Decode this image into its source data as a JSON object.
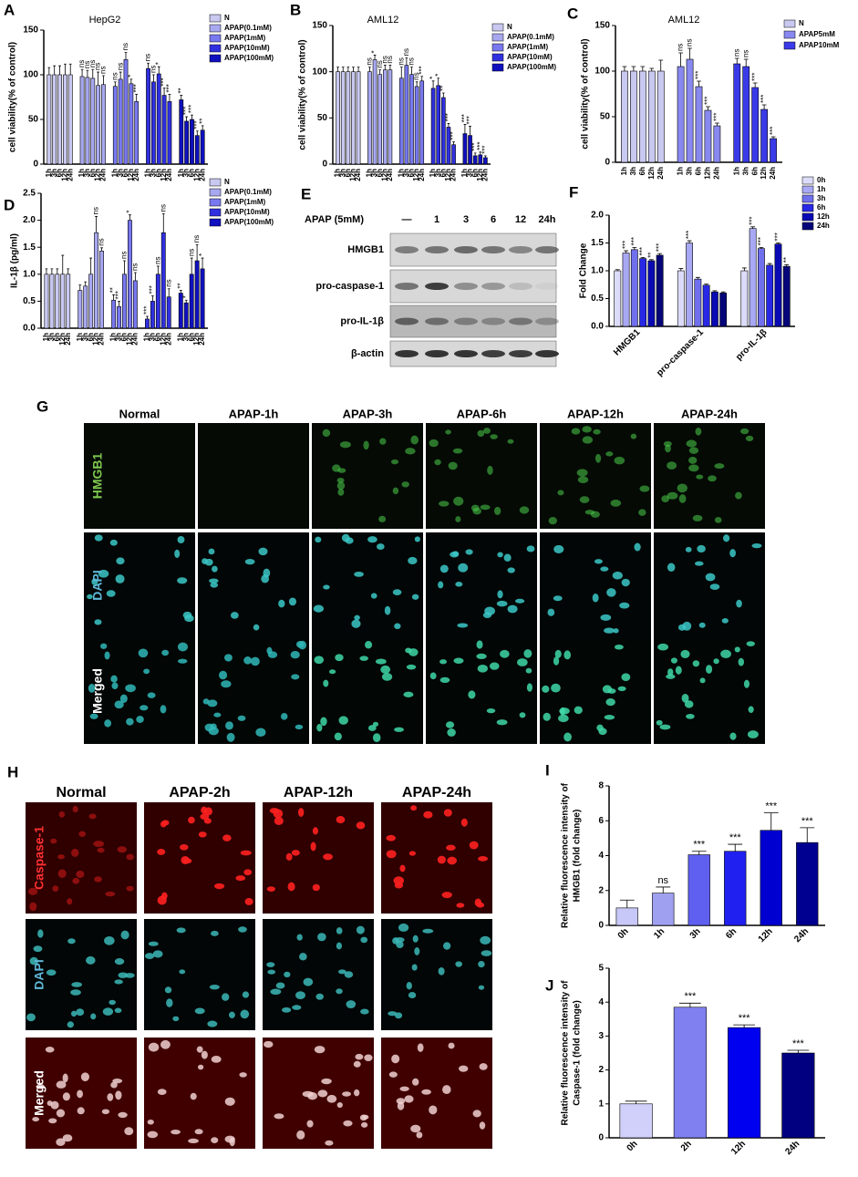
{
  "chart_data": [
    {
      "type": "bar",
      "panel": "A",
      "title": "HepG2",
      "ylabel": "cell viability(% of control)",
      "categories": [
        "1h",
        "3h",
        "6h",
        "12h",
        "24h"
      ],
      "series": [
        {
          "name": "N",
          "color": "#c8c8f0",
          "values": [
            100,
            100,
            100,
            100,
            100
          ],
          "errors": [
            8,
            10,
            10,
            12,
            12
          ],
          "annotations": [
            null,
            null,
            null,
            null,
            null
          ]
        },
        {
          "name": "APAP(0.1mM)",
          "color": "#a8a8f0",
          "values": [
            98,
            97,
            96,
            88,
            89
          ],
          "errors": [
            8,
            8,
            10,
            15,
            10
          ],
          "annotations": [
            "ns",
            "ns",
            "ns",
            "ns",
            "ns"
          ]
        },
        {
          "name": "APAP(1mM)",
          "color": "#7878f0",
          "values": [
            87,
            95,
            117,
            90,
            70
          ],
          "errors": [
            5,
            8,
            8,
            5,
            8
          ],
          "annotations": [
            "ns",
            "ns",
            "ns",
            "*",
            "***"
          ]
        },
        {
          "name": "APAP(10mM)",
          "color": "#3030e0",
          "values": [
            107,
            92,
            101,
            77,
            70
          ],
          "errors": [
            6,
            8,
            8,
            8,
            8
          ],
          "annotations": [
            "ns",
            "ns",
            "*",
            "***",
            "***"
          ]
        },
        {
          "name": "APAP(100mM)",
          "color": "#1010c0",
          "values": [
            72,
            48,
            50,
            32,
            38
          ],
          "errors": [
            5,
            5,
            5,
            5,
            5
          ],
          "annotations": [
            "**",
            "***",
            "***",
            "***",
            "**"
          ]
        }
      ],
      "ylim": [
        0,
        150
      ],
      "yticks": [
        0,
        50,
        100,
        150
      ],
      "legend": "upper right"
    },
    {
      "type": "bar",
      "panel": "B",
      "title": "AML12",
      "ylabel": "cell viability(% of control)",
      "categories": [
        "1h",
        "3h",
        "6h",
        "12h",
        "24h"
      ],
      "series": [
        {
          "name": "N",
          "color": "#c8c8f0",
          "values": [
            100,
            100,
            100,
            100,
            100
          ],
          "errors": [
            5,
            5,
            5,
            5,
            5
          ],
          "annotations": [
            null,
            null,
            null,
            null,
            null
          ]
        },
        {
          "name": "APAP(0.1mM)",
          "color": "#a8a8f0",
          "values": [
            100,
            113,
            97,
            102,
            102
          ],
          "errors": [
            5,
            5,
            5,
            5,
            5
          ],
          "annotations": [
            "ns",
            "*",
            "ns",
            "ns",
            "ns"
          ]
        },
        {
          "name": "APAP(1mM)",
          "color": "#7878f0",
          "values": [
            93,
            107,
            97,
            84,
            90
          ],
          "errors": [
            12,
            8,
            8,
            5,
            5
          ],
          "annotations": [
            "ns",
            "ns",
            "ns",
            "ns",
            "***"
          ]
        },
        {
          "name": "APAP(10mM)",
          "color": "#3030e0",
          "values": [
            82,
            85,
            72,
            40,
            21
          ],
          "errors": [
            8,
            8,
            5,
            4,
            3
          ],
          "annotations": [
            "*",
            "*",
            "**",
            "***",
            "***"
          ]
        },
        {
          "name": "APAP(100mM)",
          "color": "#1010c0",
          "values": [
            33,
            31,
            9,
            10,
            7
          ],
          "errors": [
            10,
            10,
            3,
            3,
            2
          ],
          "annotations": [
            "***",
            "***",
            "***",
            "***",
            "***"
          ]
        }
      ],
      "ylim": [
        0,
        150
      ],
      "yticks": [
        0,
        50,
        100,
        150
      ],
      "legend": "upper right"
    },
    {
      "type": "bar",
      "panel": "C",
      "title": "AML12",
      "ylabel": "cell viability(% of control)",
      "categories": [
        "1h",
        "3h",
        "6h",
        "12h",
        "24h"
      ],
      "series": [
        {
          "name": "N",
          "color": "#c8c8f0",
          "values": [
            100,
            100,
            100,
            100,
            100
          ],
          "errors": [
            5,
            5,
            5,
            3,
            12
          ],
          "annotations": [
            null,
            null,
            null,
            null,
            null
          ]
        },
        {
          "name": "APAP5mM",
          "color": "#8888f0",
          "values": [
            105,
            113,
            83,
            57,
            40
          ],
          "errors": [
            15,
            12,
            6,
            4,
            3
          ],
          "annotations": [
            "ns",
            "ns",
            "***",
            "***",
            "***"
          ]
        },
        {
          "name": "APAP10mM",
          "color": "#3a3ae8",
          "values": [
            108,
            105,
            82,
            58,
            26
          ],
          "errors": [
            6,
            8,
            5,
            5,
            2
          ],
          "annotations": [
            "ns",
            "ns",
            "***",
            "***",
            "***"
          ]
        }
      ],
      "ylim": [
        0,
        150
      ],
      "yticks": [
        0,
        50,
        100,
        150
      ],
      "legend": "upper right"
    },
    {
      "type": "bar",
      "panel": "D",
      "ylabel": "IL-1β (pg/ml)",
      "categories": [
        "1h",
        "3h",
        "6h",
        "12h",
        "24h"
      ],
      "series": [
        {
          "name": "N",
          "color": "#c8c8f0",
          "values": [
            1.0,
            1.0,
            1.0,
            1.0,
            1.0
          ],
          "errors": [
            0.1,
            0.1,
            0.1,
            0.35,
            0.1
          ],
          "annotations": [
            null,
            null,
            null,
            null,
            null
          ]
        },
        {
          "name": "APAP(0.1mM)",
          "color": "#a8a8f0",
          "values": [
            0.7,
            0.78,
            1.0,
            1.77,
            1.43
          ],
          "errors": [
            0.1,
            0.08,
            0.3,
            0.3,
            0.06
          ],
          "annotations": [
            null,
            null,
            null,
            "ns",
            "ns"
          ]
        },
        {
          "name": "APAP(1mM)",
          "color": "#7878f0",
          "values": [
            0.52,
            0.4,
            1.0,
            2.0,
            0.88
          ],
          "errors": [
            0.1,
            0.1,
            0.25,
            0.1,
            0.15
          ],
          "annotations": [
            "**",
            "***",
            "ns",
            "*",
            "ns"
          ]
        },
        {
          "name": "APAP(10mM)",
          "color": "#3030e0",
          "values": [
            0.17,
            0.5,
            1.0,
            1.77,
            0.58
          ],
          "errors": [
            0.05,
            0.1,
            0.15,
            0.35,
            0.15
          ],
          "annotations": [
            "***",
            "***",
            "ns",
            "ns",
            "ns"
          ]
        },
        {
          "name": "APAP(100mM)",
          "color": "#1010c0",
          "values": [
            0.65,
            0.47,
            1.0,
            1.25,
            1.1
          ],
          "errors": [
            0.05,
            0.05,
            0.3,
            0.3,
            0.2
          ],
          "annotations": [
            "**",
            "*",
            "ns",
            "ns",
            "*"
          ]
        }
      ],
      "ylim": [
        0,
        2.5
      ],
      "yticks": [
        {
          "value": 0,
          "label": "0.0"
        },
        0.5,
        {
          "value": 1,
          "label": "1.0"
        },
        1.5,
        {
          "value": 2,
          "label": "2.0"
        },
        2.5
      ],
      "legend": "upper right"
    },
    {
      "type": "grouped_bar",
      "panel": "F",
      "ylabel": "Fold Change",
      "categories": [
        "HMGB1",
        "pro-caspase-1",
        "pro-IL-1β"
      ],
      "series": [
        {
          "name": "0h",
          "color": "#dcdcfa",
          "values": [
            1.0,
            1.0,
            1.0
          ],
          "errors": [
            0.02,
            0.04,
            0.05
          ],
          "annotations": [
            null,
            null,
            null
          ]
        },
        {
          "name": "1h",
          "color": "#a8a8f4",
          "values": [
            1.32,
            1.5,
            1.76
          ],
          "errors": [
            0.04,
            0.04,
            0.03
          ],
          "annotations": [
            "***",
            "***",
            "***"
          ]
        },
        {
          "name": "3h",
          "color": "#7070ee",
          "values": [
            1.38,
            0.85,
            1.4
          ],
          "errors": [
            0.04,
            0.03,
            0.02
          ],
          "annotations": [
            "***",
            null,
            "***"
          ]
        },
        {
          "name": "6h",
          "color": "#2828e6",
          "values": [
            1.22,
            0.74,
            1.1
          ],
          "errors": [
            0.02,
            0.02,
            0.03
          ],
          "annotations": [
            "***",
            null,
            null
          ]
        },
        {
          "name": "12h",
          "color": "#0a0ab4",
          "values": [
            1.18,
            0.62,
            1.48
          ],
          "errors": [
            0.02,
            0.02,
            0.02
          ],
          "annotations": [
            "**",
            null,
            "***"
          ]
        },
        {
          "name": "24h",
          "color": "#06067a",
          "values": [
            1.28,
            0.6,
            1.08
          ],
          "errors": [
            0.03,
            0.02,
            0.03
          ],
          "annotations": [
            "***",
            null,
            "**"
          ]
        }
      ],
      "ylim": [
        0,
        2
      ],
      "yticks": [
        {
          "value": 0,
          "label": "0.0"
        },
        0.5,
        {
          "value": 1,
          "label": "1.0"
        },
        1.5,
        {
          "value": 2,
          "label": "2.0"
        }
      ],
      "legend": "upper right"
    },
    {
      "type": "bar",
      "panel": "I",
      "ylabel": [
        "Relative fluorescence intensity of",
        "HMGB1 (fold change)"
      ],
      "categories": [
        "0h",
        "1h",
        "3h",
        "6h",
        "12h",
        "24h"
      ],
      "values": [
        1.0,
        1.85,
        4.05,
        4.25,
        5.45,
        4.75
      ],
      "errors": [
        0.45,
        0.35,
        0.2,
        0.4,
        1.0,
        0.85
      ],
      "annotations": [
        null,
        "ns",
        "***",
        "***",
        "***",
        "***"
      ],
      "colors": [
        "#c8c8f8",
        "#a0a0f0",
        "#6060f0",
        "#2020f0",
        "#0000d0",
        "#000090"
      ],
      "ylim": [
        0,
        8
      ],
      "yticks": [
        0,
        2,
        4,
        6,
        8
      ]
    },
    {
      "type": "bar",
      "panel": "J",
      "ylabel": [
        "Relative fluorescence intensity of",
        "Caspase-1 (fold change)"
      ],
      "categories": [
        "0h",
        "2h",
        "12h",
        "24h"
      ],
      "values": [
        1.0,
        3.85,
        3.25,
        2.5
      ],
      "errors": [
        0.08,
        0.12,
        0.08,
        0.08
      ],
      "annotations": [
        null,
        "***",
        "***",
        "***"
      ],
      "colors": [
        "#d0d0fa",
        "#8080f0",
        "#0000f0",
        "#000080"
      ],
      "ylim": [
        0,
        5
      ],
      "yticks": [
        0,
        1,
        2,
        3,
        4,
        5
      ]
    }
  ],
  "blot": {
    "panel": "E",
    "treatment": "APAP (5mM)",
    "lanes": [
      "—",
      "1",
      "3",
      "6",
      "12",
      "24h"
    ],
    "rows": [
      "HMGB1",
      "pro-caspase-1",
      "pro-IL-1β",
      "β-actin"
    ]
  },
  "microscopy_g": {
    "panel": "G",
    "columns": [
      "Normal",
      "APAP-1h",
      "APAP-3h",
      "APAP-6h",
      "APAP-12h",
      "APAP-24h"
    ],
    "rows": [
      "HMGB1",
      "DAPI",
      "Merged"
    ]
  },
  "microscopy_h": {
    "panel": "H",
    "columns": [
      "Normal",
      "APAP-2h",
      "APAP-12h",
      "APAP-24h"
    ],
    "rows": [
      "Caspase-1",
      "DAPI",
      "Merged"
    ]
  }
}
